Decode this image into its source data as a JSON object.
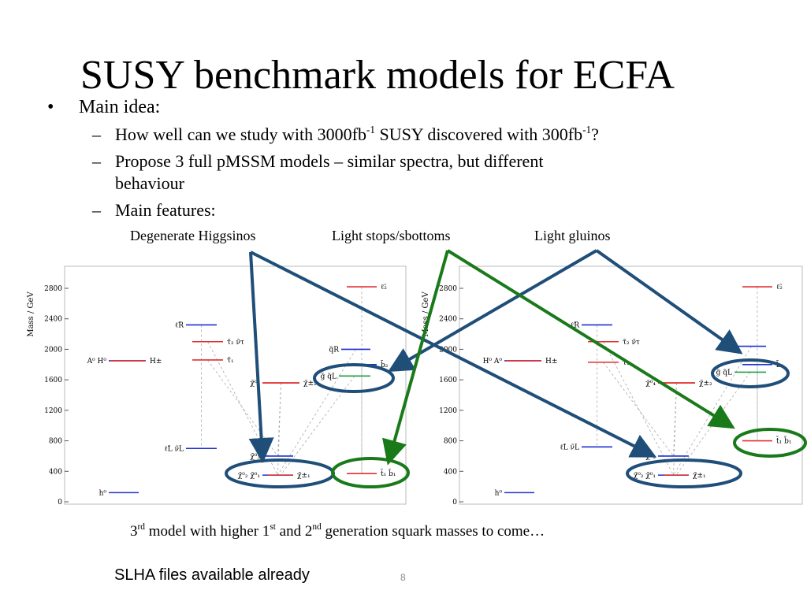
{
  "slide": {
    "title": "SUSY benchmark models for ECFA",
    "bullet": "Main idea:",
    "subitems": [
      [
        "How well can we study with 3000fb",
        "-1",
        " SUSY discovered with 300fb",
        "-1",
        "?"
      ],
      [
        "Propose 3 full pMSSM models – similar spectra, but different",
        "behaviour"
      ],
      [
        "Main features:"
      ]
    ],
    "features": [
      "Degenerate Higgsinos",
      "Light stops/sbottoms",
      "Light gluinos"
    ],
    "note": [
      "3",
      "rd",
      " model with higher 1",
      "st",
      " and 2",
      "nd",
      " generation squark masses to come…"
    ],
    "footer": "SLHA files available already",
    "page_number": "8"
  },
  "panels": [
    {
      "ylabel": "Mass / GeV",
      "yticks": [
        0,
        400,
        800,
        1200,
        1600,
        2000,
        2400,
        2800
      ],
      "levels": [
        {
          "label": "h⁰",
          "mass": 120,
          "color": "#2030d0"
        },
        {
          "label": "A⁰ H⁰",
          "mass": 1850,
          "color": "#2030d0"
        },
        {
          "label": "H±",
          "mass": 1850,
          "color": "#e03030"
        },
        {
          "label": "ℓ̃R",
          "mass": 2320,
          "color": "#2030d0"
        },
        {
          "label": "τ̃₂ ν̃τ",
          "mass": 2100,
          "color": "#e03030"
        },
        {
          "label": "τ̃₁",
          "mass": 1860,
          "color": "#e03030"
        },
        {
          "label": "ℓ̃L ν̃L",
          "mass": 700,
          "color": "#2030d0"
        },
        {
          "label": "χ̃⁰₄",
          "mass": 1560,
          "color": "#e03030"
        },
        {
          "label": "χ̃±₂",
          "mass": 1560,
          "color": "#e03030"
        },
        {
          "label": "χ̃⁰₃",
          "mass": 600,
          "color": "#2030d0"
        },
        {
          "label": "χ̃⁰₂ χ̃⁰₁",
          "mass": 350,
          "color": "#2030d0"
        },
        {
          "label": "χ̃±₁",
          "mass": 350,
          "color": "#e03030"
        },
        {
          "label": "q̃R",
          "mass": 2000,
          "color": "#2030d0"
        },
        {
          "label": "b̃₂",
          "mass": 1800,
          "color": "#2030d0"
        },
        {
          "label": "g̃ q̃L",
          "mass": 1650,
          "color": "#20a040"
        },
        {
          "label": "ℓ̃₂",
          "mass": 2820,
          "color": "#e03030"
        },
        {
          "label": "t̃₁ b̃₁",
          "mass": 370,
          "color": "#e03030"
        }
      ]
    },
    {
      "ylabel": "Mass / GeV",
      "yticks": [
        0,
        400,
        800,
        1200,
        1600,
        2000,
        2400,
        2800
      ],
      "levels": [
        {
          "label": "h⁰",
          "mass": 120,
          "color": "#2030d0"
        },
        {
          "label": "H⁰ A⁰",
          "mass": 1850,
          "color": "#2030d0"
        },
        {
          "label": "H±",
          "mass": 1850,
          "color": "#e03030"
        },
        {
          "label": "ℓ̃R",
          "mass": 2320,
          "color": "#2030d0"
        },
        {
          "label": "τ̃₂ ν̃τ",
          "mass": 2100,
          "color": "#e03030"
        },
        {
          "label": "τ̃₁",
          "mass": 1830,
          "color": "#e03030"
        },
        {
          "label": "ℓ̃L ν̃L",
          "mass": 720,
          "color": "#2030d0"
        },
        {
          "label": "χ̃⁰₄",
          "mass": 1560,
          "color": "#e03030"
        },
        {
          "label": "χ̃±₂",
          "mass": 1560,
          "color": "#e03030"
        },
        {
          "label": "χ̃⁰₃",
          "mass": 600,
          "color": "#2030d0"
        },
        {
          "label": "χ̃⁰₂ χ̃⁰₁",
          "mass": 350,
          "color": "#2030d0"
        },
        {
          "label": "χ̃±₁",
          "mass": 350,
          "color": "#e03030"
        },
        {
          "label": "t̃₂",
          "mass": 2040,
          "color": "#2030d0"
        },
        {
          "label": "b̃₂",
          "mass": 1800,
          "color": "#2030d0"
        },
        {
          "label": "g̃ q̃L",
          "mass": 1700,
          "color": "#20a040"
        },
        {
          "label": "ℓ̃₂",
          "mass": 2820,
          "color": "#e03030"
        },
        {
          "label": "t̃₁ b̃₁",
          "mass": 800,
          "color": "#e03030"
        }
      ]
    }
  ]
}
